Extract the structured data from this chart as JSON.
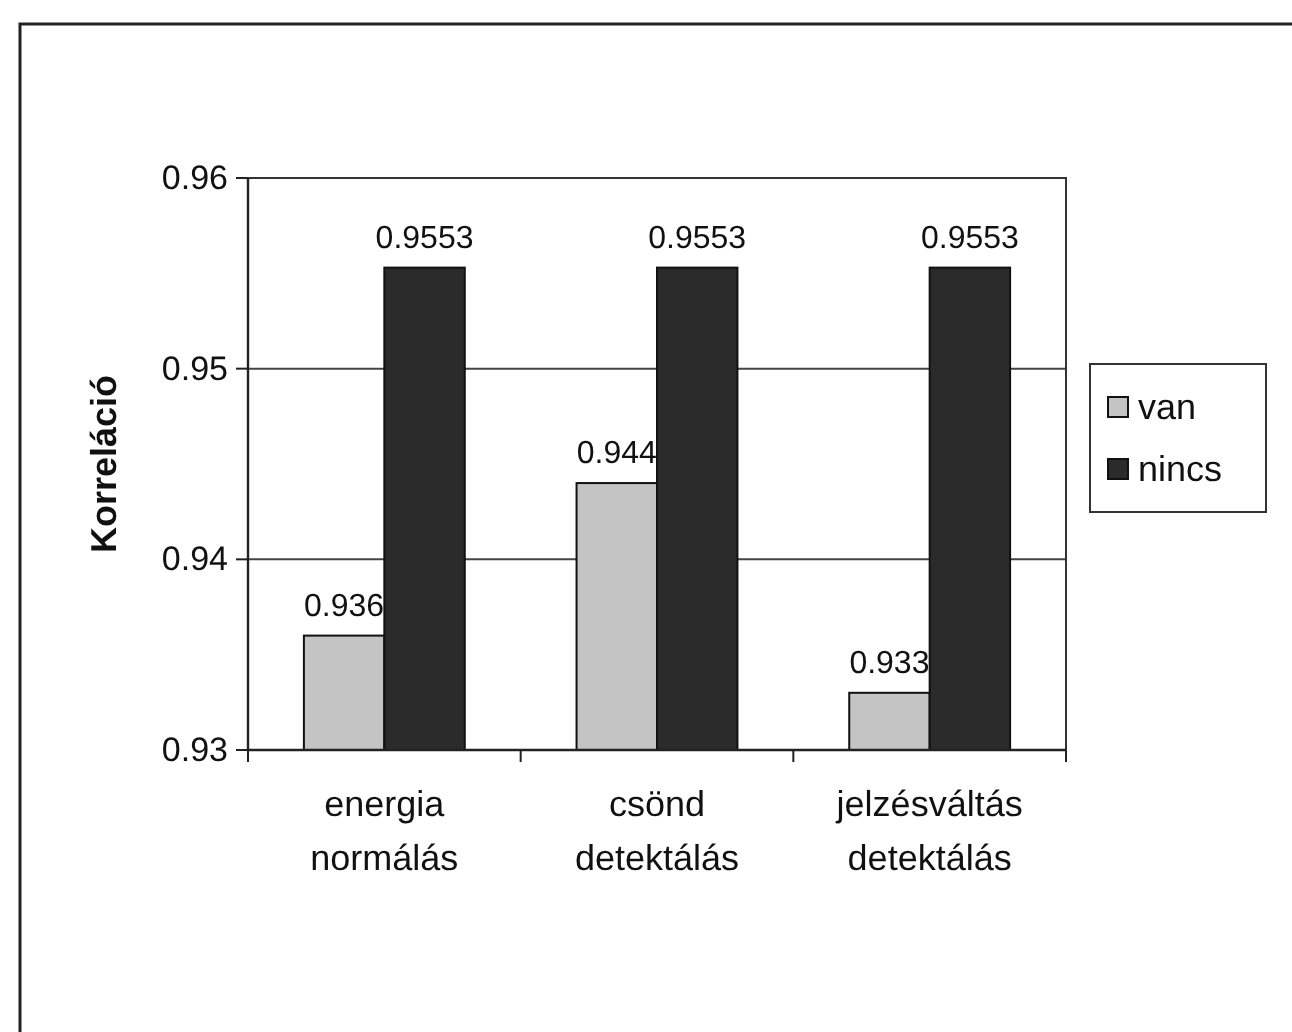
{
  "chart_data": {
    "type": "bar",
    "ylabel": "Korreláció",
    "categories": [
      "energia normálás",
      "csönd detektálás",
      "jelzésváltás detektálás"
    ],
    "series": [
      {
        "name": "van",
        "color": "#c4c4c4",
        "values": [
          0.936,
          0.944,
          0.933
        ]
      },
      {
        "name": "nincs",
        "color": "#2b2b2b",
        "values": [
          0.9553,
          0.9553,
          0.9553
        ]
      }
    ],
    "ylim": [
      0.93,
      0.96
    ],
    "yticks": [
      0.93,
      0.94,
      0.95,
      0.96
    ],
    "grid": "y",
    "legend": "right",
    "data_labels": true
  }
}
